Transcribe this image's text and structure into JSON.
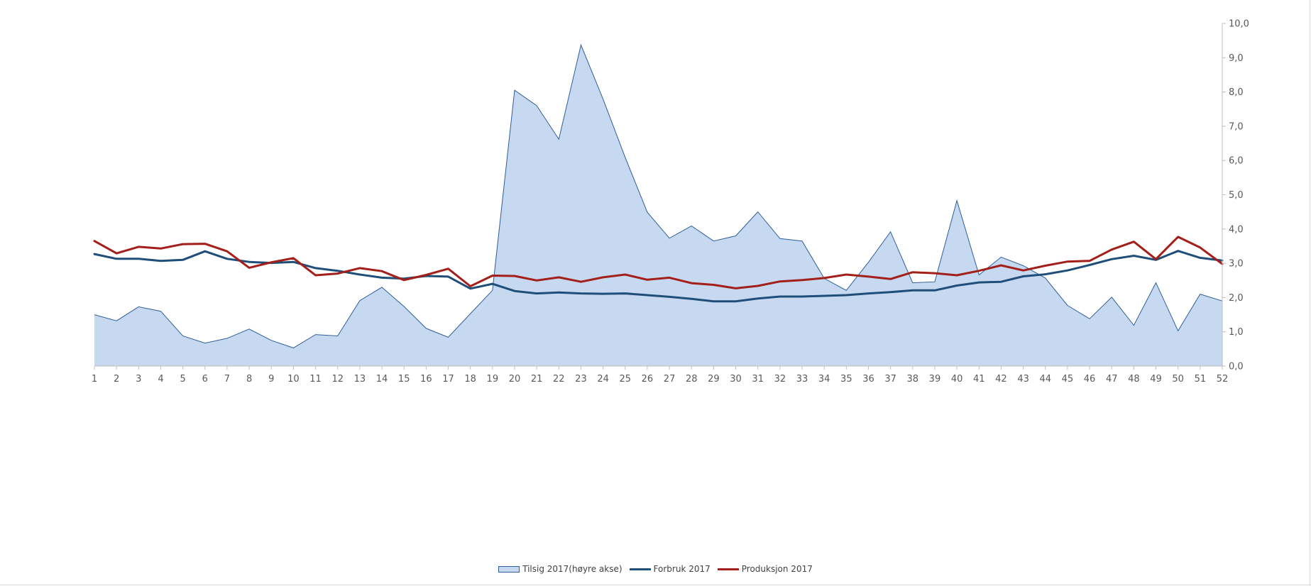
{
  "chart_data": {
    "type": "line",
    "title": "",
    "xlabel": "",
    "ylabel": "",
    "categories": [
      "1",
      "2",
      "3",
      "4",
      "5",
      "6",
      "7",
      "8",
      "9",
      "10",
      "11",
      "12",
      "13",
      "14",
      "15",
      "16",
      "17",
      "18",
      "19",
      "20",
      "21",
      "22",
      "23",
      "24",
      "25",
      "26",
      "27",
      "28",
      "29",
      "30",
      "31",
      "32",
      "33",
      "34",
      "35",
      "36",
      "37",
      "38",
      "39",
      "40",
      "41",
      "42",
      "43",
      "44",
      "45",
      "46",
      "47",
      "48",
      "49",
      "50",
      "51",
      "52"
    ],
    "y_axis_right": {
      "position": "right",
      "ylim": [
        0,
        10
      ],
      "tick_labels": [
        "0,0",
        "1,0",
        "2,0",
        "3,0",
        "4,0",
        "5,0",
        "6,0",
        "7,0",
        "8,0",
        "9,0",
        "10,0"
      ]
    },
    "grid": false,
    "legend_position": "bottom",
    "series": [
      {
        "name": "Tilsig 2017(høyre akse)",
        "kind": "area",
        "color": "#c6d9f0",
        "stroke": "#2e5f99",
        "values": [
          1.5,
          1.32,
          1.73,
          1.6,
          0.88,
          0.67,
          0.81,
          1.08,
          0.75,
          0.53,
          0.92,
          0.88,
          1.91,
          2.3,
          1.74,
          1.1,
          0.84,
          1.53,
          2.21,
          8.05,
          7.6,
          6.62,
          9.37,
          7.79,
          6.09,
          4.49,
          3.73,
          4.09,
          3.65,
          3.8,
          4.5,
          3.72,
          3.65,
          2.56,
          2.21,
          3.03,
          3.92,
          2.43,
          2.46,
          4.83,
          2.66,
          3.18,
          2.93,
          2.57,
          1.77,
          1.38,
          2.01,
          1.19,
          2.43,
          1.03,
          2.1,
          1.9
        ]
      },
      {
        "name": "Forbruk 2017",
        "kind": "line",
        "color": "#1f4e79",
        "values": [
          3.27,
          3.13,
          3.13,
          3.07,
          3.1,
          3.35,
          3.13,
          3.04,
          3.01,
          3.04,
          2.86,
          2.78,
          2.67,
          2.58,
          2.55,
          2.63,
          2.61,
          2.26,
          2.4,
          2.19,
          2.12,
          2.15,
          2.12,
          2.11,
          2.12,
          2.07,
          2.02,
          1.96,
          1.89,
          1.89,
          1.97,
          2.03,
          2.03,
          2.05,
          2.07,
          2.12,
          2.16,
          2.21,
          2.21,
          2.35,
          2.44,
          2.46,
          2.62,
          2.68,
          2.79,
          2.95,
          3.12,
          3.22,
          3.1,
          3.36,
          3.16,
          3.08
        ]
      },
      {
        "name": "Produksjon 2017",
        "kind": "line",
        "color": "#a31f1a",
        "values": [
          3.65,
          3.29,
          3.48,
          3.43,
          3.56,
          3.57,
          3.35,
          2.87,
          3.03,
          3.15,
          2.65,
          2.7,
          2.86,
          2.77,
          2.51,
          2.66,
          2.84,
          2.33,
          2.64,
          2.63,
          2.5,
          2.59,
          2.46,
          2.59,
          2.67,
          2.52,
          2.58,
          2.42,
          2.37,
          2.27,
          2.34,
          2.47,
          2.51,
          2.57,
          2.67,
          2.61,
          2.54,
          2.74,
          2.71,
          2.65,
          2.78,
          2.94,
          2.79,
          2.93,
          3.05,
          3.07,
          3.4,
          3.63,
          3.12,
          3.77,
          3.46,
          2.98
        ]
      }
    ]
  },
  "legend": {
    "items": [
      {
        "label": "Tilsig 2017(høyre akse)",
        "color": "#c6d9f0",
        "stroke": "#2e5f99",
        "kind": "area"
      },
      {
        "label": "Forbruk 2017",
        "color": "#1f4e79",
        "kind": "line"
      },
      {
        "label": "Produksjon 2017",
        "color": "#a31f1a",
        "kind": "line"
      }
    ]
  }
}
